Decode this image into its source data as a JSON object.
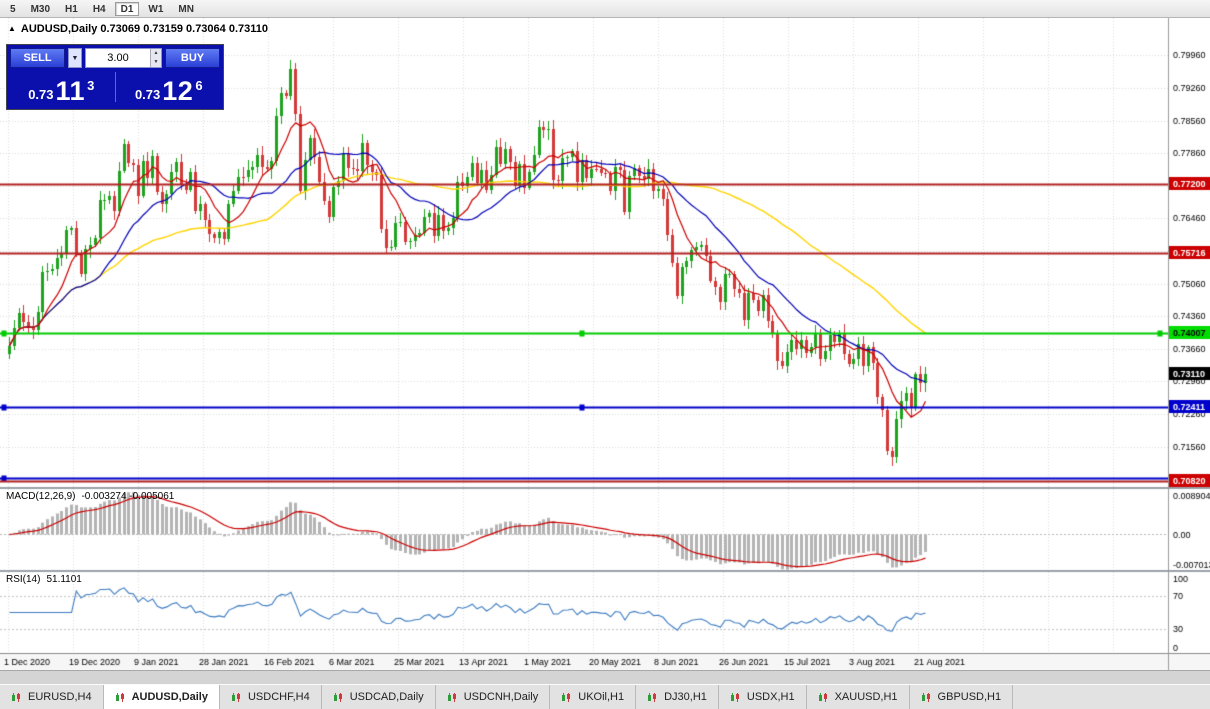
{
  "toolbar": {
    "timeframes": [
      "5",
      "M30",
      "H1",
      "H4",
      "D1",
      "W1",
      "MN"
    ],
    "active_timeframe": "D1"
  },
  "header": {
    "marker": "▲",
    "text": "AUDUSD,Daily 0.73069 0.73159 0.73064 0.73110"
  },
  "one_click": {
    "sell_label": "SELL",
    "buy_label": "BUY",
    "volume": "3.00",
    "sell_price": {
      "prefix": "0.73",
      "pips": "11",
      "pipette": "3"
    },
    "buy_price": {
      "prefix": "0.73",
      "pips": "12",
      "pipette": "6"
    }
  },
  "tabs": {
    "items": [
      "EURUSD,H4",
      "AUDUSD,Daily",
      "USDCHF,H4",
      "USDCAD,Daily",
      "USDCNH,Daily",
      "UKOil,H1",
      "DJ30,H1",
      "USDX,H1",
      "XAUUSD,H1",
      "GBPUSD,H1"
    ],
    "active": "AUDUSD,Daily"
  },
  "chart_data": {
    "type": "candlestick",
    "symbol": "AUDUSD",
    "timeframe": "Daily",
    "current_bar": {
      "open": 0.73069,
      "high": 0.73159,
      "low": 0.73064,
      "close": 0.7311
    },
    "price_top": 0.80765,
    "price_scale": 0.00021475,
    "y_axis_ticks": [
      "0.79960",
      "0.79260",
      "0.78560",
      "0.77860",
      "0.77160",
      "0.76460",
      "0.75760",
      "0.75060",
      "0.74360",
      "0.73660",
      "0.72960",
      "0.72260",
      "0.71560",
      "0.70860"
    ],
    "x_labels": [
      "1 Dec 2020",
      "19 Dec 2020",
      "9 Jan 2021",
      "28 Jan 2021",
      "16 Feb 2021",
      "6 Mar 2021",
      "25 Mar 2021",
      "13 Apr 2021",
      "1 May 2021",
      "20 May 2021",
      "8 Jun 2021",
      "26 Jun 2021",
      "15 Jul 2021",
      "3 Aug 2021",
      "21 Aug 2021"
    ],
    "closes": [
      0.7373,
      0.741,
      0.7442,
      0.7424,
      0.7416,
      0.7407,
      0.7446,
      0.753,
      0.7533,
      0.7537,
      0.7561,
      0.7571,
      0.7621,
      0.7625,
      0.7572,
      0.7527,
      0.758,
      0.759,
      0.7605,
      0.7685,
      0.7685,
      0.7694,
      0.7662,
      0.7749,
      0.7805,
      0.7766,
      0.776,
      0.7695,
      0.777,
      0.7732,
      0.778,
      0.7702,
      0.7678,
      0.7699,
      0.7745,
      0.7767,
      0.7717,
      0.7708,
      0.7745,
      0.7662,
      0.7677,
      0.7643,
      0.7612,
      0.7605,
      0.7616,
      0.7601,
      0.7678,
      0.7705,
      0.7736,
      0.7734,
      0.7751,
      0.7757,
      0.7782,
      0.7757,
      0.7752,
      0.777,
      0.7867,
      0.7916,
      0.791,
      0.7968,
      0.787,
      0.7706,
      0.7772,
      0.7818,
      0.7777,
      0.7725,
      0.7684,
      0.765,
      0.7714,
      0.7727,
      0.7785,
      0.7755,
      0.7753,
      0.7749,
      0.7809,
      0.776,
      0.7745,
      0.774,
      0.7623,
      0.7582,
      0.7585,
      0.7637,
      0.7638,
      0.7596,
      0.7598,
      0.761,
      0.7615,
      0.765,
      0.7658,
      0.7609,
      0.7654,
      0.762,
      0.7625,
      0.7647,
      0.7725,
      0.7716,
      0.7734,
      0.7765,
      0.7723,
      0.775,
      0.7707,
      0.774,
      0.78,
      0.7763,
      0.7795,
      0.7768,
      0.7716,
      0.7763,
      0.7712,
      0.7745,
      0.7782,
      0.7843,
      0.7835,
      0.7838,
      0.7728,
      0.7727,
      0.7775,
      0.7777,
      0.779,
      0.7725,
      0.7772,
      0.7732,
      0.7753,
      0.7752,
      0.7744,
      0.7742,
      0.7706,
      0.7757,
      0.775,
      0.766,
      0.7738,
      0.7755,
      0.7737,
      0.773,
      0.7753,
      0.7706,
      0.771,
      0.7687,
      0.761,
      0.7551,
      0.748,
      0.7541,
      0.7555,
      0.7578,
      0.7585,
      0.759,
      0.7565,
      0.7512,
      0.7499,
      0.7466,
      0.7527,
      0.7527,
      0.7494,
      0.7487,
      0.7429,
      0.7487,
      0.7471,
      0.7447,
      0.7482,
      0.7426,
      0.74,
      0.734,
      0.733,
      0.7359,
      0.7385,
      0.7365,
      0.7384,
      0.7358,
      0.7371,
      0.7398,
      0.7344,
      0.7362,
      0.7395,
      0.7381,
      0.7399,
      0.7356,
      0.7333,
      0.7344,
      0.7376,
      0.733,
      0.737,
      0.7336,
      0.7262,
      0.7234,
      0.7146,
      0.7133,
      0.7216,
      0.7254,
      0.7272,
      0.7238,
      0.7311,
      0.7292,
      0.7311
    ],
    "moving_averages": [
      {
        "period": 8,
        "color": "#cc0000"
      },
      {
        "period": 20,
        "color": "#0000b8"
      },
      {
        "period": 55,
        "color": "#ffd400"
      }
    ],
    "h_lines": [
      {
        "price": 0.772,
        "color": "#b22222",
        "badge": "0.77200",
        "badge_bg": "#cc0000",
        "badge_fg": "#ffffff"
      },
      {
        "price": 0.75716,
        "color": "#b22222",
        "badge": "0.75716",
        "badge_bg": "#cc0000",
        "badge_fg": "#ffffff"
      },
      {
        "price": 0.74007,
        "color": "#00cc00",
        "badge": "0.74007",
        "badge_bg": "#00dd00",
        "badge_fg": "#000000",
        "handles": [
          0,
          0.5,
          1
        ]
      },
      {
        "price": 0.72411,
        "color": "#0000cc",
        "badge": "0.72411",
        "badge_bg": "#0000cc",
        "badge_fg": "#ffffff",
        "handles": [
          0,
          0.5
        ]
      },
      {
        "price": 0.7088,
        "color": "#0000cc",
        "handles": [
          0
        ]
      },
      {
        "price": 0.7082,
        "color": "#b22222",
        "badge": "0.70820",
        "badge_bg": "#cc0000",
        "badge_fg": "#ffffff"
      }
    ],
    "current_price_badge": {
      "price": 0.7311,
      "text": "0.73110",
      "bg": "#000000",
      "fg": "#ffffff"
    },
    "macd": {
      "fast": 12,
      "slow": 26,
      "signal": 9,
      "label": "MACD(12,26,9)",
      "values_text": "-0.003274 -0.005061",
      "axis_labels": [
        "0.008904",
        "0.00",
        "-0.007013"
      ],
      "range": [
        0.008904,
        -0.007013
      ]
    },
    "rsi": {
      "period": 14,
      "label": "RSI(14)",
      "value_text": "51.1101",
      "axis_labels": [
        "100",
        "70",
        "30",
        "0"
      ],
      "levels": [
        70,
        30
      ]
    },
    "colors": {
      "up": "#1fa31f",
      "down": "#d43a3a",
      "grid": "#dcdcdc",
      "macd_hist": "#b4b4b4",
      "macd_signal": "#cc0000",
      "rsi_line": "#3e7cc1"
    }
  }
}
